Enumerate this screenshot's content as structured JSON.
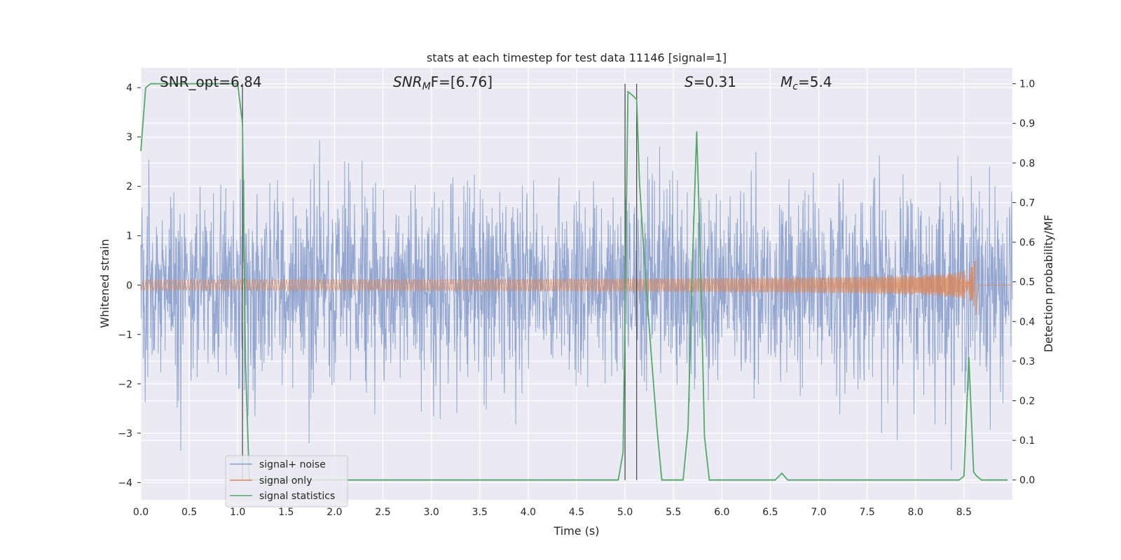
{
  "chart_data": {
    "type": "line",
    "title": "stats at each timestep for test data 11146 [signal=1]",
    "xlabel": "Time (s)",
    "ylabel_left": "Whitened strain",
    "ylabel_right": "Detection probability/MF",
    "xlim": [
      0,
      9.0
    ],
    "ylim_left": [
      -4.35,
      4.4
    ],
    "ylim_right": [
      -0.05,
      1.04
    ],
    "x_ticks": [
      "0.0",
      "0.5",
      "1.0",
      "1.5",
      "2.0",
      "2.5",
      "3.0",
      "3.5",
      "4.0",
      "4.5",
      "5.0",
      "5.5",
      "6.0",
      "6.5",
      "7.0",
      "7.5",
      "8.0",
      "8.5"
    ],
    "left_ticks": [
      "−4",
      "−3",
      "−2",
      "−1",
      "0",
      "1",
      "2",
      "3",
      "4"
    ],
    "right_ticks": [
      "0.0",
      "0.1",
      "0.2",
      "0.3",
      "0.4",
      "0.5",
      "0.6",
      "0.7",
      "0.8",
      "0.9",
      "1.0"
    ],
    "grid": true,
    "legend_position": "lower-left",
    "annotations": {
      "snr_opt": "SNR_opt=6.84",
      "snr_mf_main": "SNR",
      "snr_mf_sub": "M",
      "snr_mf_rest": "F=[6.76]",
      "s_main": "S",
      "s_rest": "=0.31",
      "mc_main": "M",
      "mc_sub": "c",
      "mc_rest": "=5.4"
    },
    "vertical_lines_x": [
      1.05,
      5.0,
      5.12
    ],
    "colors": {
      "noise": "#8a9fcc",
      "signal": "#dd8452",
      "stat": "#55a868",
      "vline": "#444444",
      "background": "#eaeaf2"
    },
    "series": [
      {
        "name": "signal+ noise",
        "axis": "left",
        "description": "whitened noisy strain, dense random trace roughly within ±3.5",
        "noise_amplitude": 1.0,
        "x_range": [
          0,
          9.0
        ]
      },
      {
        "name": "signal only",
        "axis": "left",
        "description": "chirp signal growing in amplitude toward merger at ~8.63 s",
        "merger_time": 8.63,
        "peak_amplitude": 0.72
      },
      {
        "name": "signal statistics",
        "axis": "right",
        "x": [
          0.0,
          0.05,
          0.1,
          0.2,
          0.5,
          0.8,
          1.0,
          1.05,
          1.08,
          1.12,
          1.2,
          1.5,
          2.0,
          3.0,
          4.0,
          4.5,
          4.93,
          4.98,
          5.03,
          5.08,
          5.12,
          5.15,
          5.2,
          5.27,
          5.33,
          5.38,
          5.45,
          5.6,
          5.65,
          5.7,
          5.74,
          5.78,
          5.82,
          5.87,
          5.95,
          6.5,
          6.55,
          6.62,
          6.68,
          7.0,
          8.0,
          8.45,
          8.5,
          8.55,
          8.6,
          8.63,
          8.68,
          8.8,
          8.95
        ],
        "values": [
          0.83,
          0.99,
          1.0,
          1.0,
          1.0,
          1.0,
          1.0,
          0.9,
          0.3,
          0.0,
          0.0,
          0.0,
          0.0,
          0.0,
          0.0,
          0.0,
          0.0,
          0.07,
          0.98,
          0.97,
          0.96,
          0.75,
          0.55,
          0.32,
          0.13,
          0.0,
          0.0,
          0.0,
          0.13,
          0.58,
          0.88,
          0.55,
          0.11,
          0.0,
          0.0,
          0.0,
          0.0,
          0.017,
          0.0,
          0.0,
          0.0,
          0.0,
          0.01,
          0.31,
          0.02,
          0.01,
          0.0,
          0.0,
          0.0
        ]
      }
    ]
  }
}
